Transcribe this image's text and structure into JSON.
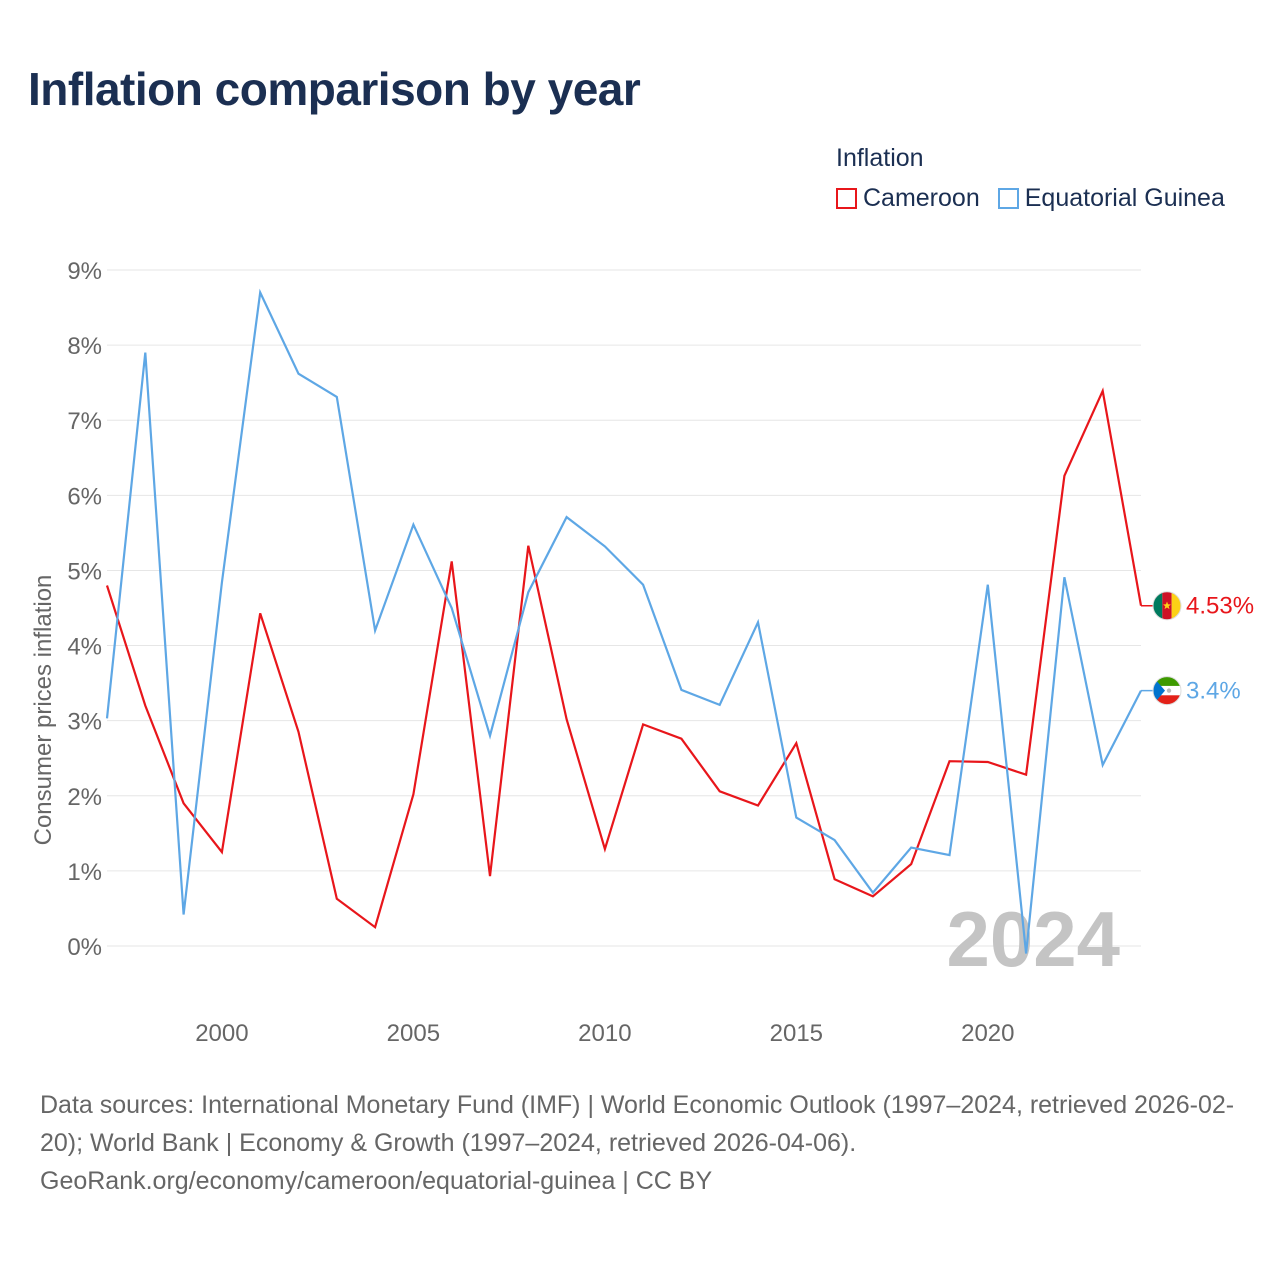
{
  "header": {
    "title": "Inflation comparison by year"
  },
  "legend": {
    "title": "Inflation",
    "items": [
      {
        "label": "Cameroon",
        "color": "#e8161b"
      },
      {
        "label": "Equatorial Guinea",
        "color": "#5ea7e5"
      }
    ]
  },
  "chart_data": {
    "type": "line",
    "title": "Inflation comparison by year",
    "xlabel": "",
    "ylabel": "Consumer prices inflation",
    "xlim": [
      1997,
      2024
    ],
    "ylim": [
      0,
      9
    ],
    "y_ticks": [
      0,
      1,
      2,
      3,
      4,
      5,
      6,
      7,
      8,
      9
    ],
    "y_tick_labels": [
      "0%",
      "1%",
      "2%",
      "3%",
      "4%",
      "5%",
      "6%",
      "7%",
      "8%",
      "9%"
    ],
    "x_ticks": [
      2000,
      2005,
      2010,
      2015,
      2020
    ],
    "x_tick_labels": [
      "2000",
      "2005",
      "2010",
      "2015",
      "2020"
    ],
    "grid": true,
    "legend_position": "top-right",
    "year_watermark": "2024",
    "x": [
      1997,
      1998,
      1999,
      2000,
      2001,
      2002,
      2003,
      2004,
      2005,
      2006,
      2007,
      2008,
      2009,
      2010,
      2011,
      2012,
      2013,
      2014,
      2015,
      2016,
      2017,
      2018,
      2019,
      2020,
      2021,
      2022,
      2023,
      2024
    ],
    "series": [
      {
        "name": "Cameroon",
        "color": "#e8161b",
        "end_label": "4.53%",
        "flag": "cameroon-flag",
        "values": [
          4.8,
          3.2,
          1.9,
          1.25,
          4.43,
          2.85,
          0.63,
          0.25,
          2.02,
          5.12,
          0.93,
          5.33,
          3.02,
          1.29,
          2.95,
          2.76,
          2.06,
          1.87,
          2.7,
          0.89,
          0.66,
          1.09,
          2.46,
          2.45,
          2.28,
          6.26,
          7.39,
          4.53
        ]
      },
      {
        "name": "Equatorial Guinea",
        "color": "#5ea7e5",
        "end_label": "3.4%",
        "flag": "equatorial-guinea-flag",
        "values": [
          3.03,
          7.9,
          0.42,
          4.84,
          8.7,
          7.62,
          7.31,
          4.2,
          5.61,
          4.5,
          2.8,
          4.71,
          5.71,
          5.32,
          4.81,
          3.41,
          3.21,
          4.31,
          1.71,
          1.41,
          0.71,
          1.31,
          1.21,
          4.81,
          -0.1,
          4.91,
          2.41,
          3.4
        ]
      }
    ]
  },
  "footer": {
    "sources": "Data sources: International Monetary Fund (IMF) | World Economic Outlook (1997–2024, retrieved 2026-02-20); World Bank | Economy & Growth (1997–2024, retrieved 2026-04-06).",
    "credit": "GeoRank.org/economy/cameroon/equatorial-guinea | CC BY"
  }
}
